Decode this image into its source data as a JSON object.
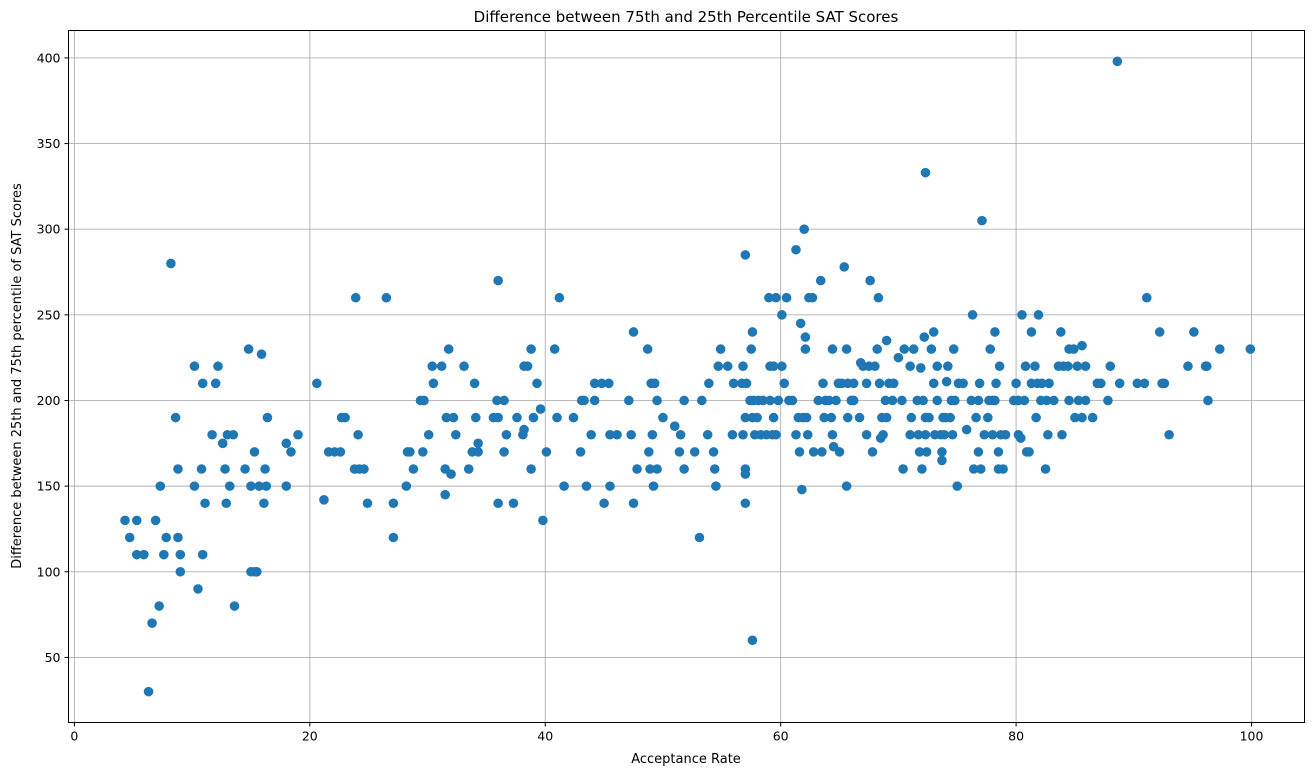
{
  "chart_data": {
    "type": "scatter",
    "title": "Difference between 75th and 25th Percentile SAT Scores",
    "xlabel": "Acceptance Rate",
    "ylabel": "Difference between 25th and 75th percentile of SAT Scores",
    "xlim": [
      -0.5,
      104.5
    ],
    "ylim": [
      12,
      416
    ],
    "xticks": [
      0,
      20,
      40,
      60,
      80,
      100
    ],
    "yticks": [
      50,
      100,
      150,
      200,
      250,
      300,
      350,
      400
    ],
    "grid": true,
    "color": "#1f77b4",
    "points": [
      [
        4.3,
        130
      ],
      [
        4.7,
        120
      ],
      [
        5.3,
        130
      ],
      [
        5.3,
        110
      ],
      [
        5.9,
        110
      ],
      [
        6.3,
        30
      ],
      [
        6.6,
        70
      ],
      [
        6.9,
        130
      ],
      [
        7.2,
        80
      ],
      [
        7.3,
        150
      ],
      [
        7.6,
        110
      ],
      [
        7.8,
        120
      ],
      [
        8.2,
        280
      ],
      [
        8.6,
        190
      ],
      [
        8.8,
        160
      ],
      [
        8.8,
        120
      ],
      [
        9.0,
        100
      ],
      [
        9.0,
        110
      ],
      [
        10.2,
        220
      ],
      [
        10.2,
        150
      ],
      [
        10.5,
        90
      ],
      [
        10.8,
        160
      ],
      [
        10.9,
        110
      ],
      [
        10.9,
        210
      ],
      [
        11.1,
        140
      ],
      [
        11.7,
        180
      ],
      [
        12.0,
        210
      ],
      [
        12.2,
        220
      ],
      [
        12.6,
        175
      ],
      [
        12.8,
        160
      ],
      [
        12.9,
        140
      ],
      [
        13.0,
        180
      ],
      [
        13.2,
        150
      ],
      [
        13.5,
        180
      ],
      [
        13.6,
        80
      ],
      [
        14.5,
        160
      ],
      [
        14.8,
        230
      ],
      [
        15.0,
        150
      ],
      [
        15.0,
        100
      ],
      [
        15.3,
        100
      ],
      [
        15.3,
        170
      ],
      [
        15.5,
        100
      ],
      [
        15.7,
        150
      ],
      [
        15.9,
        227
      ],
      [
        16.1,
        140
      ],
      [
        16.2,
        160
      ],
      [
        16.3,
        150
      ],
      [
        16.4,
        190
      ],
      [
        18.0,
        175
      ],
      [
        18.0,
        150
      ],
      [
        18.4,
        170
      ],
      [
        19.0,
        180
      ],
      [
        20.6,
        210
      ],
      [
        21.2,
        142
      ],
      [
        21.6,
        170
      ],
      [
        22.1,
        170
      ],
      [
        22.6,
        170
      ],
      [
        22.7,
        190
      ],
      [
        23.0,
        190
      ],
      [
        23.8,
        160
      ],
      [
        23.9,
        260
      ],
      [
        24.1,
        180
      ],
      [
        24.2,
        160
      ],
      [
        24.6,
        160
      ],
      [
        24.9,
        140
      ],
      [
        26.5,
        260
      ],
      [
        27.1,
        140
      ],
      [
        27.1,
        120
      ],
      [
        28.2,
        150
      ],
      [
        28.3,
        170
      ],
      [
        28.5,
        170
      ],
      [
        28.8,
        160
      ],
      [
        29.4,
        200
      ],
      [
        29.6,
        170
      ],
      [
        29.7,
        200
      ],
      [
        30.1,
        180
      ],
      [
        30.4,
        220
      ],
      [
        30.5,
        210
      ],
      [
        31.2,
        220
      ],
      [
        31.5,
        160
      ],
      [
        31.5,
        145
      ],
      [
        31.6,
        190
      ],
      [
        31.8,
        230
      ],
      [
        32.0,
        157
      ],
      [
        32.2,
        190
      ],
      [
        32.4,
        180
      ],
      [
        33.1,
        220
      ],
      [
        33.5,
        160
      ],
      [
        33.8,
        170
      ],
      [
        34.0,
        210
      ],
      [
        34.1,
        190
      ],
      [
        34.3,
        175
      ],
      [
        34.3,
        170
      ],
      [
        35.6,
        190
      ],
      [
        35.9,
        200
      ],
      [
        36.0,
        140
      ],
      [
        36.0,
        190
      ],
      [
        36.0,
        270
      ],
      [
        36.5,
        200
      ],
      [
        36.5,
        170
      ],
      [
        36.7,
        180
      ],
      [
        37.3,
        140
      ],
      [
        37.6,
        190
      ],
      [
        38.1,
        180
      ],
      [
        38.2,
        220
      ],
      [
        38.2,
        183
      ],
      [
        38.5,
        220
      ],
      [
        38.8,
        230
      ],
      [
        38.8,
        160
      ],
      [
        39.0,
        190
      ],
      [
        39.3,
        210
      ],
      [
        39.6,
        195
      ],
      [
        39.8,
        130
      ],
      [
        40.1,
        170
      ],
      [
        40.8,
        230
      ],
      [
        41.0,
        190
      ],
      [
        41.2,
        260
      ],
      [
        41.6,
        150
      ],
      [
        42.4,
        190
      ],
      [
        43.0,
        170
      ],
      [
        43.1,
        200
      ],
      [
        43.3,
        200
      ],
      [
        43.5,
        150
      ],
      [
        43.9,
        180
      ],
      [
        44.2,
        210
      ],
      [
        44.2,
        200
      ],
      [
        44.8,
        210
      ],
      [
        45.0,
        140
      ],
      [
        45.4,
        210
      ],
      [
        45.5,
        180
      ],
      [
        45.5,
        150
      ],
      [
        46.1,
        180
      ],
      [
        47.1,
        200
      ],
      [
        47.3,
        180
      ],
      [
        47.5,
        240
      ],
      [
        47.5,
        140
      ],
      [
        47.8,
        160
      ],
      [
        48.7,
        230
      ],
      [
        48.8,
        170
      ],
      [
        48.9,
        160
      ],
      [
        49.0,
        210
      ],
      [
        49.1,
        180
      ],
      [
        49.2,
        150
      ],
      [
        49.3,
        210
      ],
      [
        49.5,
        200
      ],
      [
        49.5,
        160
      ],
      [
        50.0,
        190
      ],
      [
        51.0,
        185
      ],
      [
        51.4,
        170
      ],
      [
        51.5,
        180
      ],
      [
        51.8,
        200
      ],
      [
        51.8,
        160
      ],
      [
        52.7,
        170
      ],
      [
        53.1,
        120
      ],
      [
        53.3,
        200
      ],
      [
        53.8,
        180
      ],
      [
        53.9,
        210
      ],
      [
        54.3,
        170
      ],
      [
        54.4,
        160
      ],
      [
        54.5,
        150
      ],
      [
        54.7,
        220
      ],
      [
        54.9,
        230
      ],
      [
        55.5,
        220
      ],
      [
        55.9,
        180
      ],
      [
        56.0,
        210
      ],
      [
        56.7,
        210
      ],
      [
        56.8,
        220
      ],
      [
        56.8,
        180
      ],
      [
        57.0,
        157
      ],
      [
        57.0,
        160
      ],
      [
        57.0,
        190
      ],
      [
        57.0,
        140
      ],
      [
        57.0,
        285
      ],
      [
        57.1,
        210
      ],
      [
        57.4,
        200
      ],
      [
        57.5,
        230
      ],
      [
        57.6,
        240
      ],
      [
        57.6,
        190
      ],
      [
        57.6,
        60
      ],
      [
        57.7,
        200
      ],
      [
        57.8,
        180
      ],
      [
        58.0,
        190
      ],
      [
        58.1,
        200
      ],
      [
        58.3,
        180
      ],
      [
        58.5,
        200
      ],
      [
        58.8,
        180
      ],
      [
        59.0,
        260
      ],
      [
        59.1,
        220
      ],
      [
        59.1,
        200
      ],
      [
        59.3,
        180
      ],
      [
        59.4,
        220
      ],
      [
        59.4,
        190
      ],
      [
        59.6,
        260
      ],
      [
        59.6,
        180
      ],
      [
        59.8,
        200
      ],
      [
        60.1,
        250
      ],
      [
        60.1,
        220
      ],
      [
        60.3,
        210
      ],
      [
        60.5,
        260
      ],
      [
        60.7,
        200
      ],
      [
        61.0,
        200
      ],
      [
        61.3,
        288
      ],
      [
        61.3,
        180
      ],
      [
        61.5,
        190
      ],
      [
        61.6,
        170
      ],
      [
        61.7,
        245
      ],
      [
        61.8,
        148
      ],
      [
        61.9,
        190
      ],
      [
        62.0,
        300
      ],
      [
        62.1,
        237
      ],
      [
        62.1,
        230
      ],
      [
        62.2,
        190
      ],
      [
        62.3,
        180
      ],
      [
        62.4,
        260
      ],
      [
        62.7,
        260
      ],
      [
        62.8,
        170
      ],
      [
        63.2,
        200
      ],
      [
        63.4,
        270
      ],
      [
        63.5,
        170
      ],
      [
        63.6,
        210
      ],
      [
        63.7,
        190
      ],
      [
        63.8,
        200
      ],
      [
        64.1,
        200
      ],
      [
        64.3,
        190
      ],
      [
        64.4,
        180
      ],
      [
        64.4,
        230
      ],
      [
        64.5,
        173
      ],
      [
        64.7,
        200
      ],
      [
        64.9,
        210
      ],
      [
        65.0,
        170
      ],
      [
        65.2,
        210
      ],
      [
        65.4,
        278
      ],
      [
        65.6,
        230
      ],
      [
        65.6,
        150
      ],
      [
        65.7,
        210
      ],
      [
        65.7,
        190
      ],
      [
        66.0,
        200
      ],
      [
        66.2,
        210
      ],
      [
        66.2,
        200
      ],
      [
        66.7,
        190
      ],
      [
        66.8,
        222
      ],
      [
        67.0,
        220
      ],
      [
        67.3,
        210
      ],
      [
        67.3,
        180
      ],
      [
        67.5,
        220
      ],
      [
        67.6,
        270
      ],
      [
        67.8,
        170
      ],
      [
        68.0,
        220
      ],
      [
        68.2,
        230
      ],
      [
        68.3,
        260
      ],
      [
        68.4,
        210
      ],
      [
        68.5,
        178
      ],
      [
        68.6,
        190
      ],
      [
        68.7,
        180
      ],
      [
        68.9,
        200
      ],
      [
        69.0,
        190
      ],
      [
        69.0,
        235
      ],
      [
        69.2,
        210
      ],
      [
        69.5,
        200
      ],
      [
        69.6,
        210
      ],
      [
        70.0,
        225
      ],
      [
        70.3,
        200
      ],
      [
        70.4,
        160
      ],
      [
        70.5,
        230
      ],
      [
        71.0,
        180
      ],
      [
        71.0,
        220
      ],
      [
        71.1,
        190
      ],
      [
        71.3,
        230
      ],
      [
        71.6,
        200
      ],
      [
        71.7,
        180
      ],
      [
        71.8,
        170
      ],
      [
        71.9,
        219
      ],
      [
        72.0,
        160
      ],
      [
        72.1,
        200
      ],
      [
        72.2,
        237
      ],
      [
        72.3,
        190
      ],
      [
        72.3,
        333
      ],
      [
        72.3,
        180
      ],
      [
        72.4,
        170
      ],
      [
        72.6,
        190
      ],
      [
        72.8,
        230
      ],
      [
        73.0,
        240
      ],
      [
        73.0,
        210
      ],
      [
        73.1,
        180
      ],
      [
        73.3,
        220
      ],
      [
        73.3,
        200
      ],
      [
        73.6,
        180
      ],
      [
        73.7,
        165
      ],
      [
        73.7,
        170
      ],
      [
        73.8,
        190
      ],
      [
        73.9,
        180
      ],
      [
        74.0,
        190
      ],
      [
        74.1,
        211
      ],
      [
        74.2,
        220
      ],
      [
        74.4,
        190
      ],
      [
        74.5,
        200
      ],
      [
        74.6,
        180
      ],
      [
        74.7,
        230
      ],
      [
        74.8,
        200
      ],
      [
        75.0,
        150
      ],
      [
        75.1,
        210
      ],
      [
        75.5,
        210
      ],
      [
        75.8,
        183
      ],
      [
        76.2,
        200
      ],
      [
        76.3,
        250
      ],
      [
        76.4,
        160
      ],
      [
        76.6,
        190
      ],
      [
        76.8,
        170
      ],
      [
        76.8,
        200
      ],
      [
        76.9,
        210
      ],
      [
        77.0,
        160
      ],
      [
        77.1,
        305
      ],
      [
        77.3,
        180
      ],
      [
        77.6,
        190
      ],
      [
        77.7,
        200
      ],
      [
        77.8,
        230
      ],
      [
        78.0,
        180
      ],
      [
        78.0,
        200
      ],
      [
        78.2,
        200
      ],
      [
        78.2,
        240
      ],
      [
        78.3,
        210
      ],
      [
        78.5,
        170
      ],
      [
        78.5,
        160
      ],
      [
        78.6,
        220
      ],
      [
        78.7,
        180
      ],
      [
        78.9,
        160
      ],
      [
        79.1,
        180
      ],
      [
        79.8,
        200
      ],
      [
        80.0,
        210
      ],
      [
        80.2,
        200
      ],
      [
        80.2,
        180
      ],
      [
        80.4,
        178
      ],
      [
        80.5,
        250
      ],
      [
        80.7,
        200
      ],
      [
        80.8,
        220
      ],
      [
        80.9,
        170
      ],
      [
        81.1,
        170
      ],
      [
        81.3,
        240
      ],
      [
        81.3,
        210
      ],
      [
        81.6,
        220
      ],
      [
        81.7,
        190
      ],
      [
        81.8,
        210
      ],
      [
        81.9,
        250
      ],
      [
        82.1,
        200
      ],
      [
        82.2,
        210
      ],
      [
        82.5,
        160
      ],
      [
        82.6,
        200
      ],
      [
        82.7,
        180
      ],
      [
        82.8,
        210
      ],
      [
        83.2,
        200
      ],
      [
        83.6,
        220
      ],
      [
        83.8,
        240
      ],
      [
        83.9,
        180
      ],
      [
        84.0,
        220
      ],
      [
        84.4,
        220
      ],
      [
        84.5,
        200
      ],
      [
        84.5,
        230
      ],
      [
        84.9,
        230
      ],
      [
        85.0,
        190
      ],
      [
        85.2,
        220
      ],
      [
        85.3,
        200
      ],
      [
        85.6,
        190
      ],
      [
        85.6,
        232
      ],
      [
        85.9,
        220
      ],
      [
        85.9,
        200
      ],
      [
        86.5,
        190
      ],
      [
        86.9,
        210
      ],
      [
        87.2,
        210
      ],
      [
        87.8,
        200
      ],
      [
        88.0,
        220
      ],
      [
        88.6,
        398
      ],
      [
        88.8,
        210
      ],
      [
        90.3,
        210
      ],
      [
        90.9,
        210
      ],
      [
        91.1,
        260
      ],
      [
        92.2,
        240
      ],
      [
        92.4,
        210
      ],
      [
        92.6,
        210
      ],
      [
        93.0,
        180
      ],
      [
        94.6,
        220
      ],
      [
        95.1,
        240
      ],
      [
        96.1,
        220
      ],
      [
        96.2,
        220
      ],
      [
        96.3,
        200
      ],
      [
        97.3,
        230
      ],
      [
        99.9,
        230
      ]
    ]
  }
}
